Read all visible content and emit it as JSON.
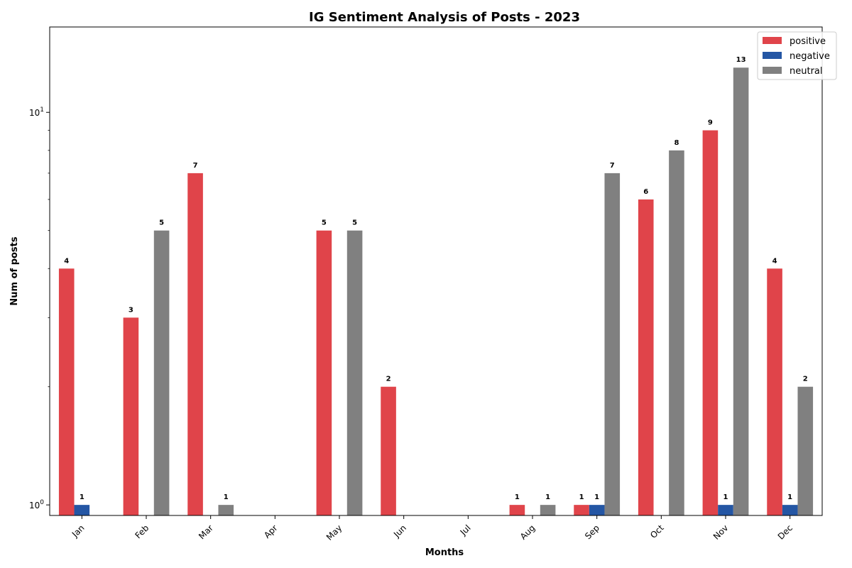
{
  "chart_data": {
    "type": "bar",
    "title": "IG Sentiment Analysis of Posts - 2023",
    "xlabel": "Months",
    "ylabel": "Num of posts",
    "yscale": "log",
    "ylim": [
      0.94,
      16.5
    ],
    "yticks": [
      {
        "value": 1,
        "base": "10",
        "exp": "0"
      },
      {
        "value": 10,
        "base": "10",
        "exp": "1"
      }
    ],
    "grid": false,
    "legend_position": "top-right",
    "categories": [
      "Jan",
      "Feb",
      "Mar",
      "Apr",
      "May",
      "Jun",
      "Jul",
      "Aug",
      "Sep",
      "Oct",
      "Nov",
      "Dec"
    ],
    "series": [
      {
        "name": "positive",
        "color": "#e0444a",
        "values": [
          4,
          3,
          7,
          0,
          5,
          2,
          0,
          1,
          1,
          6,
          9,
          4
        ]
      },
      {
        "name": "negative",
        "color": "#2456a4",
        "values": [
          1,
          0,
          0,
          0,
          0,
          0,
          0,
          0,
          1,
          0,
          1,
          1
        ]
      },
      {
        "name": "neutral",
        "color": "#808080",
        "values": [
          0,
          5,
          1,
          0,
          5,
          0,
          0,
          1,
          7,
          8,
          13,
          2
        ]
      }
    ]
  }
}
